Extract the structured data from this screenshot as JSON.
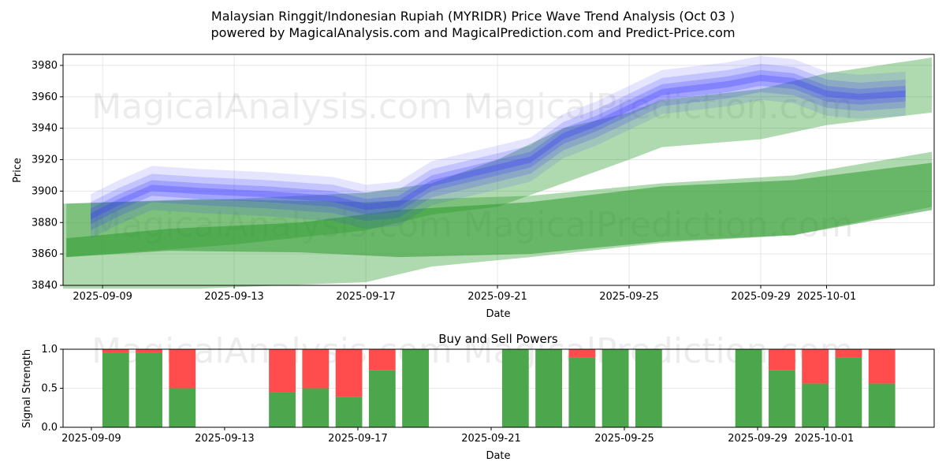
{
  "chart_data": [
    {
      "type": "area",
      "title": "Malaysian Ringgit/Indonesian Rupiah (MYRIDR) Price Wave Trend Analysis (Oct 03 )",
      "subtitle": "powered by MagicalAnalysis.com and MagicalPrediction.com and Predict-Price.com",
      "xlabel": "Date",
      "ylabel": "Price",
      "ylim": [
        3840,
        3987
      ],
      "x_reference_date": "2025-09-09",
      "xlim_days": [
        -1.2,
        25.27
      ],
      "xticks": [
        {
          "day": 0,
          "label": "2025-09-09"
        },
        {
          "day": 4,
          "label": "2025-09-13"
        },
        {
          "day": 8,
          "label": "2025-09-17"
        },
        {
          "day": 12,
          "label": "2025-09-21"
        },
        {
          "day": 16,
          "label": "2025-09-25"
        },
        {
          "day": 20,
          "label": "2025-09-29"
        },
        {
          "day": 22,
          "label": "2025-10-01"
        }
      ],
      "yticks": [
        3840,
        3860,
        3880,
        3900,
        3920,
        3940,
        3960,
        3980
      ],
      "grid": true,
      "green_bands": [
        {
          "name": "lower-wide",
          "points": [
            [
              -1.2,
              3838,
              3892
            ],
            [
              3,
              3838,
              3895
            ],
            [
              8,
              3842,
              3893
            ],
            [
              10,
              3852,
              3895
            ],
            [
              13,
              3858,
              3897
            ],
            [
              17,
              3867,
              3905
            ],
            [
              21,
              3872,
              3910
            ],
            [
              25.2,
              3890,
              3925
            ]
          ]
        },
        {
          "name": "lower-core",
          "points": [
            [
              -1.1,
              3858,
              3870
            ],
            [
              2,
              3862,
              3876
            ],
            [
              6,
              3861,
              3880
            ],
            [
              9,
              3858,
              3888
            ],
            [
              13,
              3860,
              3893
            ],
            [
              17,
              3868,
              3903
            ],
            [
              21,
              3872,
              3907
            ],
            [
              25.2,
              3888,
              3918
            ]
          ]
        },
        {
          "name": "upper-rising",
          "points": [
            [
              -1.1,
              3858,
              3892
            ],
            [
              4,
              3866,
              3895
            ],
            [
              8,
              3875,
              3899
            ],
            [
              10,
              3885,
              3905
            ],
            [
              12,
              3890,
              3920
            ],
            [
              14,
              3905,
              3940
            ],
            [
              16,
              3920,
              3950
            ],
            [
              17,
              3928,
              3958
            ],
            [
              20,
              3933,
              3965
            ],
            [
              22,
              3942,
              3975
            ],
            [
              25.2,
              3950,
              3985
            ]
          ]
        }
      ],
      "blue_trend": {
        "points": [
          [
            -0.36,
            3884
          ],
          [
            0.5,
            3893
          ],
          [
            1.5,
            3902
          ],
          [
            3,
            3900
          ],
          [
            5,
            3898
          ],
          [
            7,
            3895
          ],
          [
            8,
            3890
          ],
          [
            9,
            3892
          ],
          [
            10,
            3905
          ],
          [
            12,
            3915
          ],
          [
            13,
            3920
          ],
          [
            14,
            3935
          ],
          [
            15,
            3943
          ],
          [
            16,
            3953
          ],
          [
            17,
            3963
          ],
          [
            19,
            3968
          ],
          [
            20,
            3972
          ],
          [
            21,
            3970
          ],
          [
            22,
            3962
          ],
          [
            23,
            3960
          ],
          [
            24.4,
            3962
          ]
        ],
        "band_halfwidths": [
          14,
          9,
          5,
          2
        ]
      }
    },
    {
      "type": "bar",
      "title": "Buy and Sell Powers",
      "xlabel": "Date",
      "ylabel": "Signal Strength",
      "ylim": [
        0,
        1
      ],
      "yticks": [
        {
          "v": 0,
          "label": "0.0"
        },
        {
          "v": 0.5,
          "label": "0.5"
        },
        {
          "v": 1,
          "label": "1.0"
        }
      ],
      "xlim_days": [
        -0.85,
        25.3
      ],
      "xticks": [
        {
          "day": 0,
          "label": "2025-09-09"
        },
        {
          "day": 4,
          "label": "2025-09-13"
        },
        {
          "day": 8,
          "label": "2025-09-17"
        },
        {
          "day": 12,
          "label": "2025-09-21"
        },
        {
          "day": 16,
          "label": "2025-09-25"
        },
        {
          "day": 20,
          "label": "2025-09-29"
        },
        {
          "day": 22,
          "label": "2025-10-01"
        }
      ],
      "series": [
        {
          "name": "Buy",
          "color": "#4ca64c"
        },
        {
          "name": "Sell",
          "color": "#ff4c4c"
        }
      ],
      "bars": [
        {
          "date": "2025-09-10",
          "day": 1,
          "buy": 0.95
        },
        {
          "date": "2025-09-11",
          "day": 2,
          "buy": 0.95
        },
        {
          "date": "2025-09-12",
          "day": 3,
          "buy": 0.5
        },
        {
          "date": "2025-09-15",
          "day": 6,
          "buy": 0.45
        },
        {
          "date": "2025-09-16",
          "day": 7,
          "buy": 0.5
        },
        {
          "date": "2025-09-17",
          "day": 8,
          "buy": 0.39
        },
        {
          "date": "2025-09-18",
          "day": 9,
          "buy": 0.73
        },
        {
          "date": "2025-09-19",
          "day": 10,
          "buy": 1.0
        },
        {
          "date": "2025-09-22",
          "day": 13,
          "buy": 1.0
        },
        {
          "date": "2025-09-23",
          "day": 14,
          "buy": 1.0
        },
        {
          "date": "2025-09-24",
          "day": 15,
          "buy": 0.89
        },
        {
          "date": "2025-09-25",
          "day": 16,
          "buy": 1.0
        },
        {
          "date": "2025-09-26",
          "day": 17,
          "buy": 1.0
        },
        {
          "date": "2025-09-29",
          "day": 20,
          "buy": 1.0
        },
        {
          "date": "2025-09-30",
          "day": 21,
          "buy": 0.73
        },
        {
          "date": "2025-10-01",
          "day": 22,
          "buy": 0.56
        },
        {
          "date": "2025-10-02",
          "day": 23,
          "buy": 0.89
        },
        {
          "date": "2025-10-03",
          "day": 24,
          "buy": 0.56
        }
      ]
    }
  ],
  "watermarks": [
    "MagicalAnalysis.com",
    "MagicalPrediction.com"
  ],
  "colors": {
    "green": "#2e9a2e",
    "blue": "#3333ff",
    "buy": "#4ca64c",
    "sell": "#ff4c4c"
  }
}
